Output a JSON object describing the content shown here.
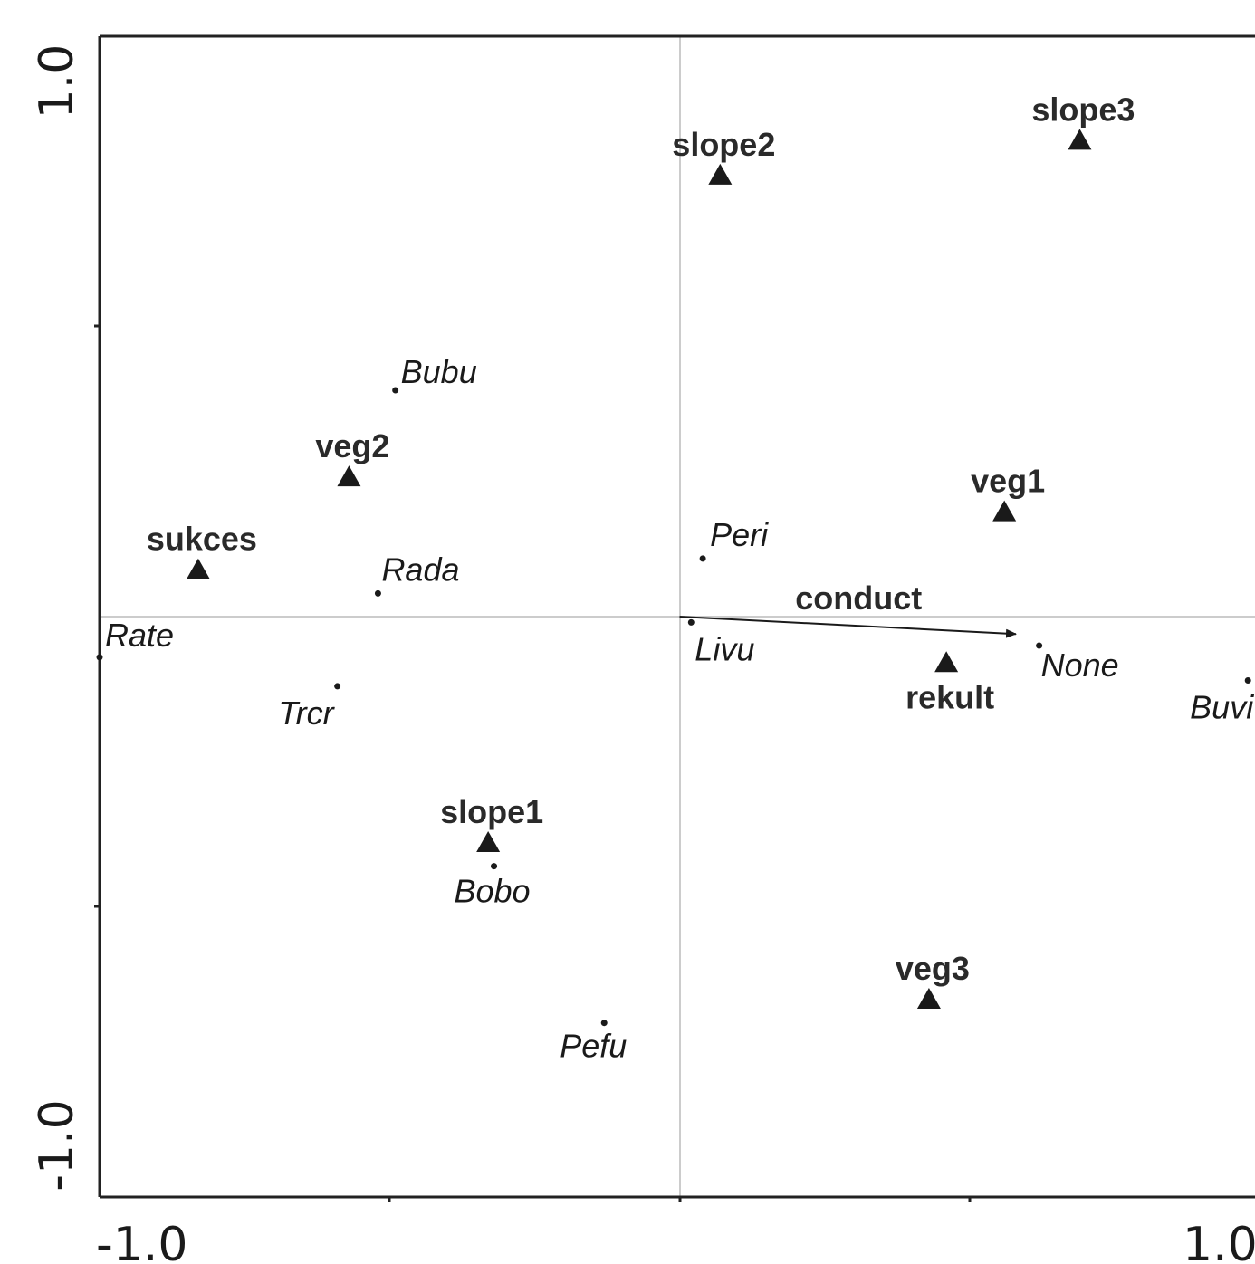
{
  "chart_data": {
    "type": "scatter",
    "title": "",
    "xlabel": "",
    "ylabel": "",
    "xlim": [
      -1.0,
      1.0
    ],
    "ylim": [
      -1.0,
      1.0
    ],
    "x_tick_labels": [
      "-1.0",
      "1.0"
    ],
    "y_tick_labels": [
      "1.0",
      "-1.0"
    ],
    "grid": false,
    "zero_lines": true,
    "colors": {
      "marks": "#1a1a1a",
      "zero_lines": "#bbbbbb",
      "frame": "#222222"
    },
    "species": [
      {
        "label": "Bubu",
        "x": -0.49,
        "y": 0.39
      },
      {
        "label": "Peri",
        "x": 0.04,
        "y": 0.1
      },
      {
        "label": "Rada",
        "x": -0.52,
        "y": 0.04
      },
      {
        "label": "Rate",
        "x": -1.0,
        "y": -0.07
      },
      {
        "label": "Livu",
        "x": 0.02,
        "y": -0.01
      },
      {
        "label": "Trcr",
        "x": -0.59,
        "y": -0.12
      },
      {
        "label": "None",
        "x": 0.62,
        "y": -0.05
      },
      {
        "label": "Buvi",
        "x": 0.98,
        "y": -0.11
      },
      {
        "label": "Bobo",
        "x": -0.32,
        "y": -0.43
      },
      {
        "label": "Pefu",
        "x": -0.13,
        "y": -0.7
      }
    ],
    "environment_centroids": [
      {
        "label": "slope3",
        "x": 0.69,
        "y": 0.82
      },
      {
        "label": "slope2",
        "x": 0.07,
        "y": 0.76
      },
      {
        "label": "veg2",
        "x": -0.57,
        "y": 0.24
      },
      {
        "label": "veg1",
        "x": 0.56,
        "y": 0.18
      },
      {
        "label": "sukces",
        "x": -0.83,
        "y": 0.08
      },
      {
        "label": "rekult",
        "x": 0.46,
        "y": -0.08
      },
      {
        "label": "slope1",
        "x": -0.33,
        "y": -0.39
      },
      {
        "label": "veg3",
        "x": 0.43,
        "y": -0.66
      }
    ],
    "environment_vectors": [
      {
        "label": "conduct",
        "x": 0.58,
        "y": -0.03
      }
    ]
  }
}
